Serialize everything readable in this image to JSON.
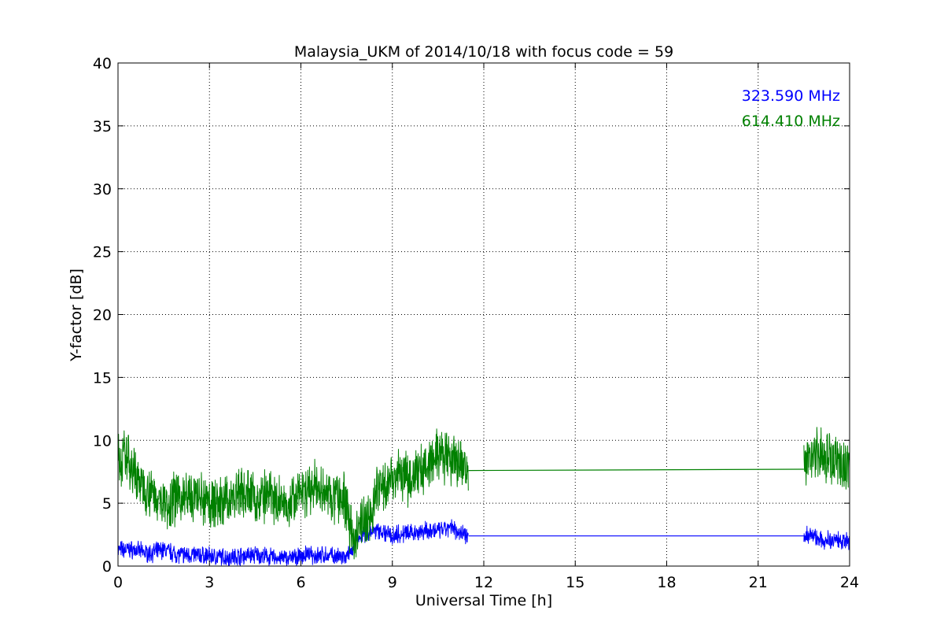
{
  "chart_data": {
    "type": "line",
    "title": "Malaysia_UKM of 2014/10/18 with focus code = 59",
    "xlabel": "Universal Time [h]",
    "ylabel": "Y-factor [dB]",
    "xlim": [
      0,
      24
    ],
    "ylim": [
      0,
      40
    ],
    "xticks": [
      0,
      3,
      6,
      9,
      12,
      15,
      18,
      21,
      24
    ],
    "yticks": [
      0,
      5,
      10,
      15,
      20,
      25,
      30,
      35,
      40
    ],
    "grid": true,
    "legend_placement": "top-right",
    "series": [
      {
        "name": "323.590 MHz",
        "color": "#0000ff",
        "x": [
          0,
          0.5,
          1,
          1.5,
          2,
          2.5,
          3,
          3.5,
          4,
          4.5,
          5,
          5.5,
          6,
          6.5,
          7,
          7.5,
          7.7,
          8,
          8.5,
          9,
          9.5,
          10,
          10.5,
          11,
          11.5,
          22.5,
          22.8,
          23,
          23.5,
          24
        ],
        "y": [
          1.3,
          1.3,
          1.0,
          1.3,
          0.9,
          0.9,
          0.8,
          0.7,
          0.8,
          0.9,
          0.7,
          0.6,
          0.8,
          0.9,
          0.8,
          0.6,
          1.4,
          2.5,
          2.8,
          2.5,
          2.6,
          2.8,
          2.8,
          3.0,
          2.4,
          2.4,
          2.5,
          2.0,
          2.1,
          2.0
        ]
      },
      {
        "name": "614.410 MHz",
        "color": "#008000",
        "x": [
          0,
          0.3,
          0.6,
          1,
          1.5,
          2,
          2.5,
          3,
          3.5,
          4,
          4.5,
          5,
          5.5,
          6,
          6.5,
          7,
          7.5,
          7.7,
          8,
          8.3,
          8.5,
          9,
          9.5,
          10,
          10.5,
          11,
          11.5,
          22.5,
          22.8,
          23,
          23.5,
          24
        ],
        "y": [
          8.2,
          8.8,
          7.0,
          6.0,
          5.0,
          5.5,
          5.4,
          5.0,
          5.0,
          6.0,
          5.5,
          5.3,
          5.1,
          5.6,
          6.2,
          5.5,
          5.1,
          1.8,
          3.5,
          4.0,
          6.0,
          7.2,
          7.0,
          7.8,
          8.8,
          8.2,
          7.6,
          7.7,
          9.2,
          9.0,
          8.5,
          7.8
        ]
      }
    ]
  }
}
